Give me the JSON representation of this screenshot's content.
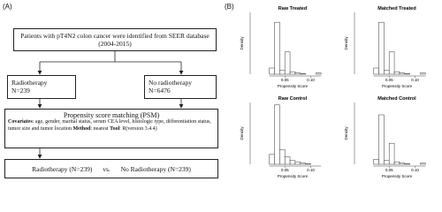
{
  "panel_a": {
    "label": "(A)",
    "source": {
      "lines": [
        "Patients with pT4N2 colon cancer were identified from SEER database",
        "(2004-2015)"
      ]
    },
    "treated": {
      "lines": [
        "Radiotherapy",
        "N=239"
      ]
    },
    "untreated": {
      "lines": [
        "No radiotherapy",
        "N=6476"
      ]
    },
    "matching": {
      "title": "Propensity score matching (PSM)",
      "runs": [
        {
          "text": "Covariates",
          "bold": true
        },
        {
          "text": ": age, gender, marital status, serum CEA level, histologic type, differentiation status, tumor size and tumor location ",
          "bold": false
        },
        {
          "text": "Method",
          "bold": true
        },
        {
          "text": ": nearest ",
          "bold": false
        },
        {
          "text": "Tool",
          "bold": true
        },
        {
          "text": ": R(version 3.4.4)",
          "bold": false
        }
      ]
    },
    "result": {
      "left": "Radiotherapy (N=239)",
      "middle": "vs.",
      "right": "No Radiotherapy (N=239)"
    }
  },
  "panel_b": {
    "label": "(B)",
    "charts": [
      {
        "type": "histogram",
        "title": "Raw Treated",
        "x_label": "Propensity Score",
        "y_label": "Density",
        "bins": [
          0.02,
          0.03,
          0.04,
          0.05,
          0.06,
          0.07,
          0.08,
          0.09,
          0.1,
          0.11,
          0.12
        ],
        "values": [
          5,
          42,
          3,
          18,
          2,
          1,
          0.5,
          0,
          0,
          1
        ],
        "xlim": [
          -0.01,
          0.14
        ],
        "ylim": [
          0,
          50
        ],
        "xticks": [
          0.05,
          {
            "value": 0.1,
            "label": "0.10"
          }
        ]
      },
      {
        "type": "histogram",
        "title": "Matched Treated",
        "x_label": "Propensity Score",
        "y_label": "Density",
        "bins": [
          0.02,
          0.03,
          0.04,
          0.05,
          0.06,
          0.07,
          0.08,
          0.09,
          0.1,
          0.11,
          0.12
        ],
        "values": [
          5,
          42,
          3,
          18,
          2,
          1,
          0.5,
          0,
          0,
          1
        ],
        "xlim": [
          -0.01,
          0.14
        ],
        "ylim": [
          0,
          50
        ],
        "xticks": [
          0.05,
          {
            "value": 0.1,
            "label": "0.10"
          }
        ]
      },
      {
        "type": "histogram",
        "title": "Raw Control",
        "x_label": "Propensity Score",
        "y_label": "Density",
        "bins": [
          0.02,
          0.03,
          0.04,
          0.05,
          0.06,
          0.07,
          0.08,
          0.09,
          0.1,
          0.11,
          0.12
        ],
        "values": [
          8,
          48,
          12,
          6,
          3,
          2,
          1,
          0.5,
          0,
          0
        ],
        "xlim": [
          -0.01,
          0.14
        ],
        "ylim": [
          0,
          50
        ],
        "xticks": [
          0.05,
          {
            "value": 0.1,
            "label": "0.10"
          }
        ]
      },
      {
        "type": "histogram",
        "title": "Matched Control",
        "x_label": "Propensity Score",
        "y_label": "Density",
        "bins": [
          0.02,
          0.03,
          0.04,
          0.05,
          0.06,
          0.07,
          0.08,
          0.09,
          0.1,
          0.11,
          0.12
        ],
        "values": [
          4,
          40,
          3,
          17,
          2,
          1,
          0.5,
          0,
          0,
          1
        ],
        "xlim": [
          -0.01,
          0.14
        ],
        "ylim": [
          0,
          50
        ],
        "xticks": [
          0.05,
          {
            "value": 0.1,
            "label": "0.10"
          }
        ]
      }
    ]
  }
}
